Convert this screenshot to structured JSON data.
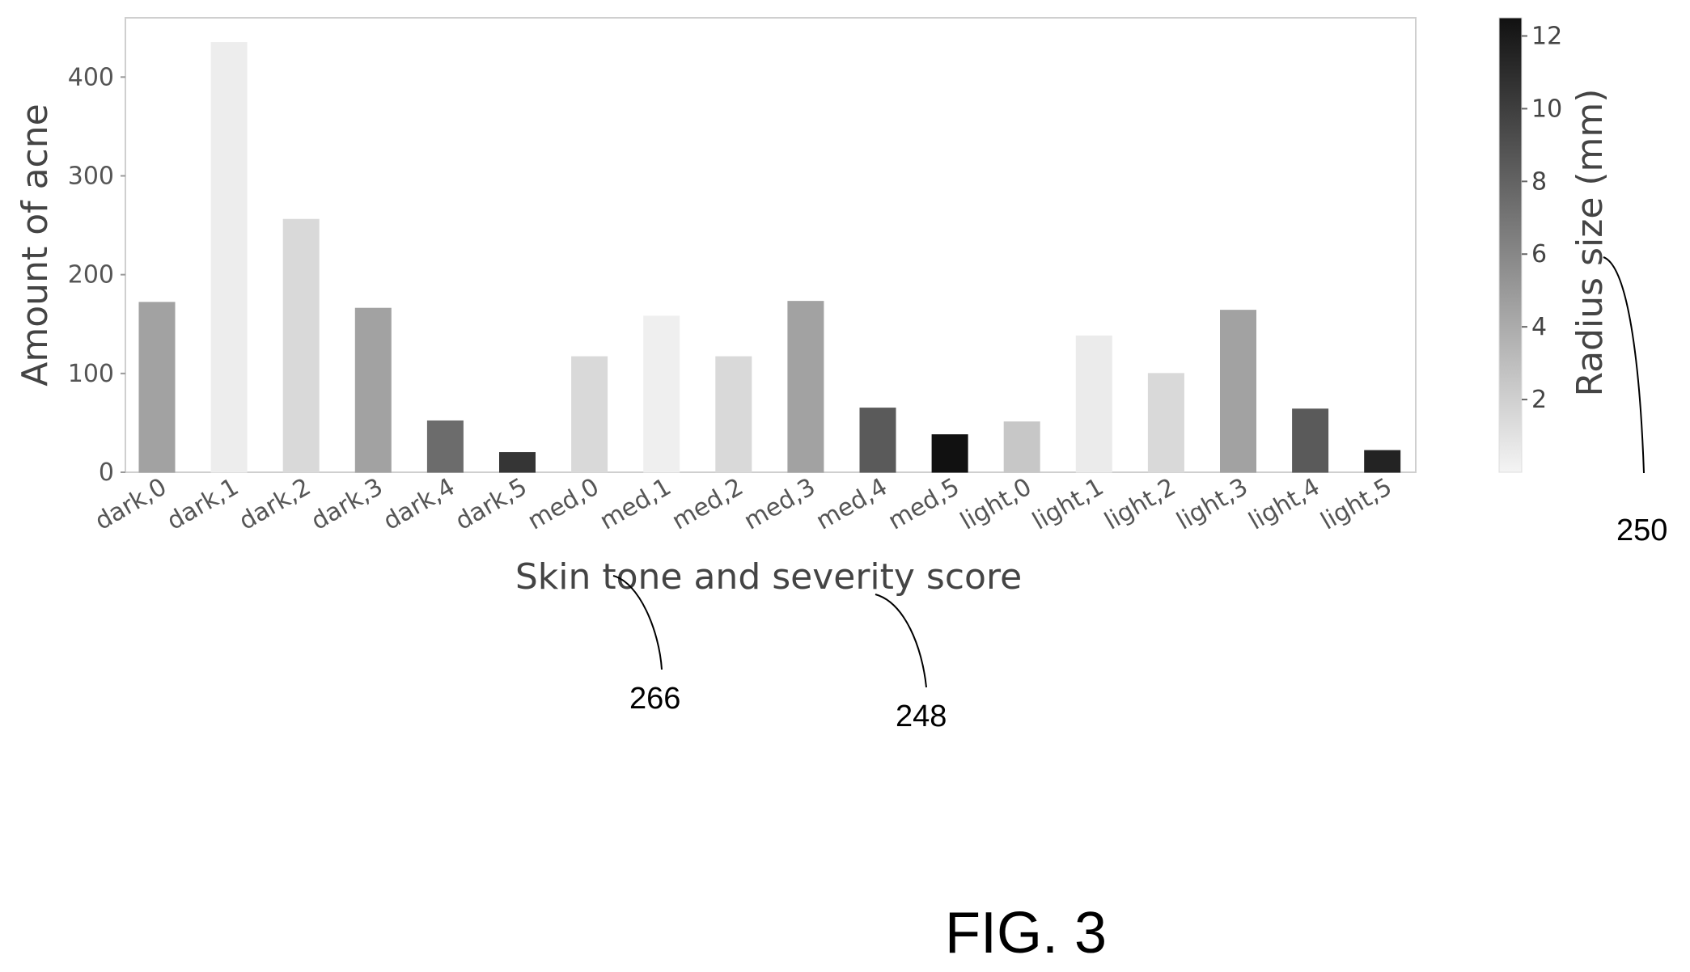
{
  "figure_label": "FIG. 3",
  "reference_numerals": {
    "colorbar": "250",
    "xlabel_left": "266",
    "xlabel_right": "248"
  },
  "chart_data": {
    "type": "bar",
    "title": "",
    "xlabel": "Skin tone and severity score",
    "ylabel": "Amount of acne",
    "ylim": [
      0,
      460
    ],
    "yticks": [
      0,
      100,
      200,
      300,
      400
    ],
    "grid": false,
    "categories": [
      "dark,0",
      "dark,1",
      "dark,2",
      "dark,3",
      "dark,4",
      "dark,5",
      "med,0",
      "med,1",
      "med,2",
      "med,3",
      "med,4",
      "med,5",
      "light,0",
      "light,1",
      "light,2",
      "light,3",
      "light,4",
      "light,5"
    ],
    "values": [
      172,
      435,
      256,
      166,
      52,
      20,
      117,
      158,
      117,
      173,
      65,
      38,
      51,
      138,
      100,
      164,
      64,
      22
    ],
    "radius_mm": [
      4.5,
      0.4,
      1.5,
      4.5,
      7.5,
      10.5,
      1.5,
      0.3,
      1.5,
      4.5,
      8.5,
      12.5,
      2.5,
      0.5,
      1.5,
      4.5,
      8.5,
      11.5
    ],
    "colorbar": {
      "label": "Radius size (mm)",
      "range": [
        0,
        12.5
      ],
      "ticks": [
        2,
        4,
        6,
        8,
        10,
        12
      ],
      "colors": [
        "#f4f4f4",
        "#111111"
      ]
    }
  }
}
